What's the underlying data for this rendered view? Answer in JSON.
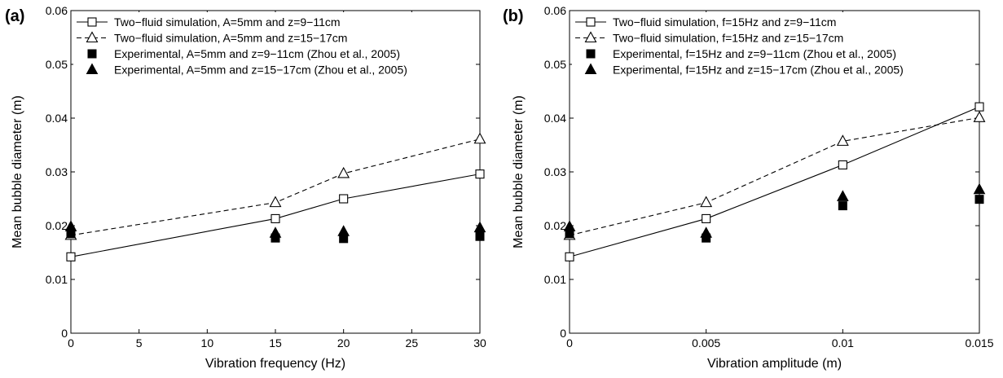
{
  "figure": {
    "panels": [
      {
        "label": "(a)"
      },
      {
        "label": "(b)"
      }
    ]
  },
  "chart_data": [
    {
      "type": "line",
      "panel_label": "(a)",
      "xlabel": "Vibration frequency (Hz)",
      "ylabel": "Mean bubble diameter (m)",
      "xlim": [
        0,
        30
      ],
      "ylim": [
        0,
        0.06
      ],
      "xticks": [
        0,
        5,
        10,
        15,
        20,
        25,
        30
      ],
      "xtick_labels": [
        "0",
        "5",
        "10",
        "15",
        "20",
        "25",
        "30"
      ],
      "yticks": [
        0,
        0.01,
        0.02,
        0.03,
        0.04,
        0.05,
        0.06
      ],
      "ytick_labels": [
        "0",
        "0.01",
        "0.02",
        "0.03",
        "0.04",
        "0.05",
        "0.06"
      ],
      "grid": false,
      "legend_position": "top-left",
      "series": [
        {
          "name": "Two−fluid simulation, A=5mm and z=9−11cm",
          "marker": "open-square",
          "line": "solid",
          "x": [
            0,
            15,
            20,
            30
          ],
          "y": [
            0.0142,
            0.0213,
            0.025,
            0.0296
          ]
        },
        {
          "name": "Two−fluid simulation, A=5mm and z=15−17cm",
          "marker": "open-triangle",
          "line": "dashed",
          "x": [
            0,
            15,
            20,
            30
          ],
          "y": [
            0.0182,
            0.0243,
            0.0297,
            0.0361
          ]
        },
        {
          "name": "Experimental, A=5mm and z=9−11cm (Zhou et al., 2005)",
          "marker": "filled-square",
          "line": "none",
          "x": [
            0,
            15,
            20,
            30
          ],
          "y": [
            0.0185,
            0.0177,
            0.0176,
            0.018
          ]
        },
        {
          "name": "Experimental, A=5mm and z=15−17cm (Zhou et al., 2005)",
          "marker": "filled-triangle",
          "line": "none",
          "x": [
            0,
            15,
            20,
            30
          ],
          "y": [
            0.0198,
            0.0186,
            0.0189,
            0.0196
          ]
        }
      ]
    },
    {
      "type": "line",
      "panel_label": "(b)",
      "xlabel": "Vibration amplitude (m)",
      "ylabel": "Mean bubble diameter (m)",
      "xlim": [
        0,
        0.015
      ],
      "ylim": [
        0,
        0.06
      ],
      "xticks": [
        0,
        0.005,
        0.01,
        0.015
      ],
      "xtick_labels": [
        "0",
        "0.005",
        "0.01",
        "0.015"
      ],
      "yticks": [
        0,
        0.01,
        0.02,
        0.03,
        0.04,
        0.05,
        0.06
      ],
      "ytick_labels": [
        "0",
        "0.01",
        "0.02",
        "0.03",
        "0.04",
        "0.05",
        "0.06"
      ],
      "grid": false,
      "legend_position": "top-left",
      "series": [
        {
          "name": "Two−fluid simulation, f=15Hz and z=9−11cm",
          "marker": "open-square",
          "line": "solid",
          "x": [
            0,
            0.005,
            0.01,
            0.015
          ],
          "y": [
            0.0142,
            0.0213,
            0.0313,
            0.0421
          ]
        },
        {
          "name": "Two−fluid simulation, f=15Hz and z=15−17cm",
          "marker": "open-triangle",
          "line": "dashed",
          "x": [
            0,
            0.005,
            0.01,
            0.015
          ],
          "y": [
            0.0182,
            0.0243,
            0.0357,
            0.0401
          ]
        },
        {
          "name": "Experimental, f=15Hz and z=9−11cm (Zhou et al., 2005)",
          "marker": "filled-square",
          "line": "none",
          "x": [
            0,
            0.005,
            0.01,
            0.015
          ],
          "y": [
            0.0185,
            0.0177,
            0.0237,
            0.0249
          ]
        },
        {
          "name": "Experimental, f=15Hz and z=15−17cm (Zhou et al., 2005)",
          "marker": "filled-triangle",
          "line": "none",
          "x": [
            0,
            0.005,
            0.01,
            0.015
          ],
          "y": [
            0.0198,
            0.0186,
            0.0254,
            0.0267
          ]
        }
      ]
    }
  ]
}
